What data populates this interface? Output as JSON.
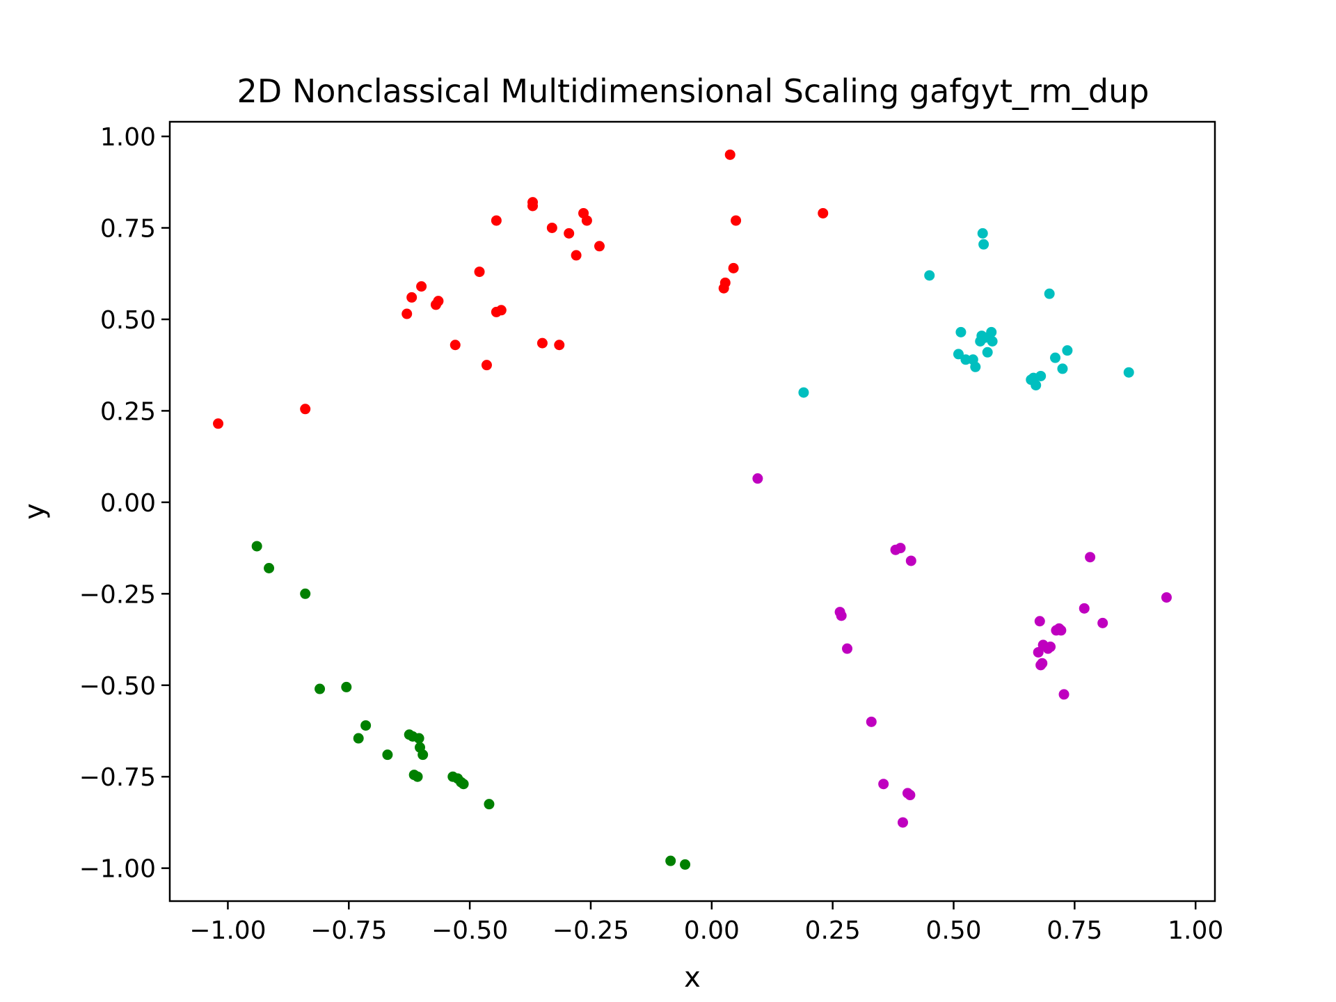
{
  "chart_data": {
    "type": "scatter",
    "title": "2D Nonclassical Multidimensional Scaling gafgyt_rm_dup",
    "xlabel": "x",
    "ylabel": "y",
    "xlim": [
      -1.12,
      1.04
    ],
    "ylim": [
      -1.09,
      1.04
    ],
    "grid": false,
    "x_ticks": [
      {
        "value": -1.0,
        "label": "−1.00"
      },
      {
        "value": -0.75,
        "label": "−0.75"
      },
      {
        "value": -0.5,
        "label": "−0.50"
      },
      {
        "value": -0.25,
        "label": "−0.25"
      },
      {
        "value": 0.0,
        "label": "0.00"
      },
      {
        "value": 0.25,
        "label": "0.25"
      },
      {
        "value": 0.5,
        "label": "0.50"
      },
      {
        "value": 0.75,
        "label": "0.75"
      },
      {
        "value": 1.0,
        "label": "1.00"
      }
    ],
    "y_ticks": [
      {
        "value": 1.0,
        "label": "1.00"
      },
      {
        "value": 0.75,
        "label": "0.75"
      },
      {
        "value": 0.5,
        "label": "0.50"
      },
      {
        "value": 0.25,
        "label": "0.25"
      },
      {
        "value": 0.0,
        "label": "0.00"
      },
      {
        "value": -0.25,
        "label": "−0.25"
      },
      {
        "value": -0.5,
        "label": "−0.50"
      },
      {
        "value": -0.75,
        "label": "−0.75"
      },
      {
        "value": -1.0,
        "label": "−1.00"
      }
    ],
    "series": [
      {
        "color": "#ff0000",
        "points": [
          [
            -1.02,
            0.215
          ],
          [
            -0.84,
            0.255
          ],
          [
            -0.63,
            0.515
          ],
          [
            -0.62,
            0.56
          ],
          [
            -0.6,
            0.59
          ],
          [
            -0.57,
            0.54
          ],
          [
            -0.565,
            0.55
          ],
          [
            -0.53,
            0.43
          ],
          [
            -0.48,
            0.63
          ],
          [
            -0.465,
            0.375
          ],
          [
            -0.445,
            0.77
          ],
          [
            -0.445,
            0.52
          ],
          [
            -0.435,
            0.525
          ],
          [
            -0.37,
            0.82
          ],
          [
            -0.37,
            0.81
          ],
          [
            -0.35,
            0.435
          ],
          [
            -0.33,
            0.75
          ],
          [
            -0.315,
            0.43
          ],
          [
            -0.295,
            0.735
          ],
          [
            -0.28,
            0.675
          ],
          [
            -0.265,
            0.79
          ],
          [
            -0.258,
            0.77
          ],
          [
            -0.232,
            0.7
          ],
          [
            0.025,
            0.585
          ],
          [
            0.028,
            0.6
          ],
          [
            0.038,
            0.95
          ],
          [
            0.045,
            0.64
          ],
          [
            0.05,
            0.77
          ],
          [
            0.23,
            0.79
          ]
        ]
      },
      {
        "color": "#00bfbf",
        "points": [
          [
            0.19,
            0.3
          ],
          [
            0.45,
            0.62
          ],
          [
            0.51,
            0.405
          ],
          [
            0.515,
            0.465
          ],
          [
            0.525,
            0.39
          ],
          [
            0.54,
            0.39
          ],
          [
            0.545,
            0.37
          ],
          [
            0.555,
            0.44
          ],
          [
            0.558,
            0.455
          ],
          [
            0.56,
            0.735
          ],
          [
            0.562,
            0.705
          ],
          [
            0.565,
            0.45
          ],
          [
            0.57,
            0.41
          ],
          [
            0.578,
            0.465
          ],
          [
            0.58,
            0.44
          ],
          [
            0.66,
            0.335
          ],
          [
            0.665,
            0.34
          ],
          [
            0.67,
            0.32
          ],
          [
            0.68,
            0.345
          ],
          [
            0.698,
            0.57
          ],
          [
            0.71,
            0.395
          ],
          [
            0.725,
            0.365
          ],
          [
            0.735,
            0.415
          ],
          [
            0.862,
            0.355
          ]
        ]
      },
      {
        "color": "#bf00bf",
        "points": [
          [
            0.095,
            0.065
          ],
          [
            0.265,
            -0.3
          ],
          [
            0.268,
            -0.31
          ],
          [
            0.28,
            -0.4
          ],
          [
            0.33,
            -0.6
          ],
          [
            0.355,
            -0.77
          ],
          [
            0.38,
            -0.13
          ],
          [
            0.39,
            -0.125
          ],
          [
            0.395,
            -0.875
          ],
          [
            0.405,
            -0.795
          ],
          [
            0.41,
            -0.8
          ],
          [
            0.412,
            -0.16
          ],
          [
            0.675,
            -0.41
          ],
          [
            0.678,
            -0.325
          ],
          [
            0.68,
            -0.445
          ],
          [
            0.683,
            -0.44
          ],
          [
            0.685,
            -0.39
          ],
          [
            0.695,
            -0.4
          ],
          [
            0.7,
            -0.395
          ],
          [
            0.712,
            -0.35
          ],
          [
            0.718,
            -0.345
          ],
          [
            0.722,
            -0.35
          ],
          [
            0.728,
            -0.525
          ],
          [
            0.77,
            -0.29
          ],
          [
            0.782,
            -0.15
          ],
          [
            0.808,
            -0.33
          ],
          [
            0.94,
            -0.26
          ]
        ]
      },
      {
        "color": "#008000",
        "points": [
          [
            -0.94,
            -0.12
          ],
          [
            -0.915,
            -0.18
          ],
          [
            -0.84,
            -0.25
          ],
          [
            -0.81,
            -0.51
          ],
          [
            -0.755,
            -0.505
          ],
          [
            -0.73,
            -0.645
          ],
          [
            -0.715,
            -0.61
          ],
          [
            -0.67,
            -0.69
          ],
          [
            -0.625,
            -0.635
          ],
          [
            -0.618,
            -0.64
          ],
          [
            -0.615,
            -0.745
          ],
          [
            -0.608,
            -0.75
          ],
          [
            -0.605,
            -0.645
          ],
          [
            -0.603,
            -0.67
          ],
          [
            -0.597,
            -0.69
          ],
          [
            -0.535,
            -0.75
          ],
          [
            -0.525,
            -0.755
          ],
          [
            -0.518,
            -0.765
          ],
          [
            -0.513,
            -0.77
          ],
          [
            -0.46,
            -0.825
          ],
          [
            -0.085,
            -0.98
          ],
          [
            -0.055,
            -0.99
          ]
        ]
      }
    ]
  }
}
